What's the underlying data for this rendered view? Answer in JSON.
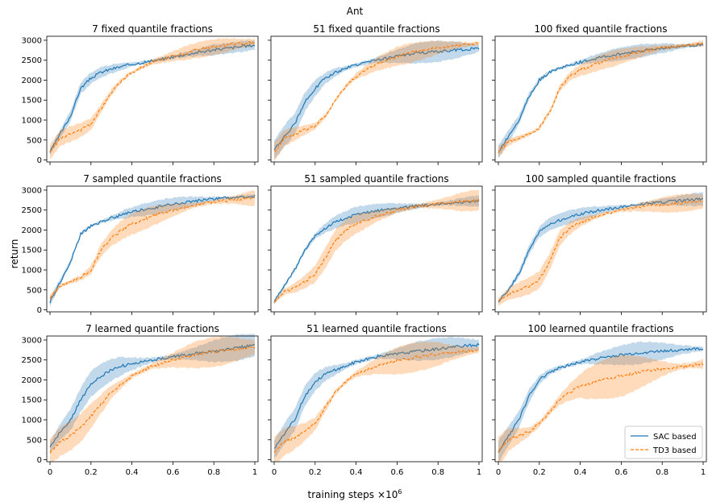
{
  "figure": {
    "title": "Ant",
    "xlabel": "training steps",
    "xlabel_exponent": "×10",
    "xlabel_exponent_sup": "6",
    "ylabel": "return"
  },
  "legend": {
    "placement": "lower-right",
    "entries": [
      "SAC based",
      "TD3 based"
    ]
  },
  "colors": {
    "sac": "#1f77b4",
    "td3": "#ff7f0e"
  },
  "chart_data": [
    {
      "type": "line",
      "title": "7 fixed quantile fractions",
      "x_ticks": [
        "0",
        "0.2",
        "0.4",
        "0.6",
        "0.8",
        "1"
      ],
      "y_ticks": [
        "0",
        "500",
        "1000",
        "1500",
        "2000",
        "2500",
        "3000"
      ],
      "xlim": [
        0,
        1
      ],
      "ylim": [
        -50,
        3100
      ],
      "x": [
        0,
        0.05,
        0.1,
        0.15,
        0.2,
        0.25,
        0.3,
        0.35,
        0.4,
        0.5,
        0.6,
        0.7,
        0.8,
        0.9,
        1.0
      ],
      "series": [
        {
          "name": "SAC based",
          "values": [
            200,
            650,
            1100,
            1800,
            2050,
            2200,
            2280,
            2340,
            2400,
            2480,
            2580,
            2680,
            2760,
            2820,
            2880
          ],
          "band": 120
        },
        {
          "name": "TD3 based",
          "values": [
            200,
            550,
            650,
            750,
            900,
            1300,
            1700,
            2000,
            2200,
            2450,
            2600,
            2730,
            2830,
            2900,
            2950
          ],
          "band": 180
        }
      ]
    },
    {
      "type": "line",
      "title": "51 fixed quantile fractions",
      "x_ticks": [
        "0",
        "0.2",
        "0.4",
        "0.6",
        "0.8",
        "1"
      ],
      "y_ticks": [
        "0",
        "500",
        "1000",
        "1500",
        "2000",
        "2500",
        "3000"
      ],
      "xlim": [
        0,
        1
      ],
      "ylim": [
        -50,
        3100
      ],
      "x": [
        0,
        0.05,
        0.1,
        0.15,
        0.2,
        0.25,
        0.3,
        0.35,
        0.4,
        0.5,
        0.6,
        0.7,
        0.8,
        0.9,
        1.0
      ],
      "series": [
        {
          "name": "SAC based",
          "values": [
            250,
            600,
            900,
            1450,
            1800,
            2050,
            2200,
            2300,
            2380,
            2500,
            2600,
            2680,
            2720,
            2760,
            2800
          ],
          "band": 250
        },
        {
          "name": "TD3 based",
          "values": [
            200,
            550,
            650,
            750,
            850,
            1100,
            1500,
            1850,
            2100,
            2400,
            2600,
            2720,
            2820,
            2880,
            2920
          ],
          "band": 220
        }
      ]
    },
    {
      "type": "line",
      "title": "100 fixed quantile fractions",
      "x_ticks": [
        "0",
        "0.2",
        "0.4",
        "0.6",
        "0.8",
        "1"
      ],
      "y_ticks": [
        "0",
        "500",
        "1000",
        "1500",
        "2000",
        "2500",
        "3000"
      ],
      "xlim": [
        0,
        1
      ],
      "ylim": [
        -50,
        3100
      ],
      "x": [
        0,
        0.05,
        0.1,
        0.15,
        0.2,
        0.25,
        0.3,
        0.35,
        0.4,
        0.5,
        0.6,
        0.7,
        0.8,
        0.9,
        1.0
      ],
      "series": [
        {
          "name": "SAC based",
          "values": [
            200,
            600,
            1000,
            1600,
            2000,
            2200,
            2300,
            2380,
            2450,
            2570,
            2660,
            2740,
            2800,
            2850,
            2900
          ],
          "band": 150
        },
        {
          "name": "TD3 based",
          "values": [
            200,
            450,
            550,
            650,
            800,
            1200,
            1800,
            2100,
            2250,
            2450,
            2600,
            2720,
            2810,
            2860,
            2920
          ],
          "band": 180
        }
      ]
    },
    {
      "type": "line",
      "title": "7 sampled quantile fractions",
      "x_ticks": [
        "0",
        "0.2",
        "0.4",
        "0.6",
        "0.8",
        "1"
      ],
      "y_ticks": [
        "0",
        "500",
        "1000",
        "1500",
        "2000",
        "2500",
        "3000"
      ],
      "xlim": [
        0,
        1
      ],
      "ylim": [
        -50,
        3100
      ],
      "x": [
        0,
        0.05,
        0.1,
        0.15,
        0.2,
        0.25,
        0.3,
        0.35,
        0.4,
        0.5,
        0.6,
        0.7,
        0.8,
        0.9,
        1.0
      ],
      "series": [
        {
          "name": "SAC based",
          "values": [
            200,
            700,
            1200,
            1900,
            2100,
            2200,
            2300,
            2380,
            2450,
            2550,
            2650,
            2720,
            2780,
            2820,
            2850
          ],
          "band": 150
        },
        {
          "name": "TD3 based",
          "values": [
            300,
            600,
            700,
            800,
            1000,
            1500,
            1800,
            2000,
            2150,
            2350,
            2500,
            2620,
            2700,
            2760,
            2800
          ],
          "band": 250
        }
      ]
    },
    {
      "type": "line",
      "title": "51 sampled quantile fractions",
      "x_ticks": [
        "0",
        "0.2",
        "0.4",
        "0.6",
        "0.8",
        "1"
      ],
      "y_ticks": [
        "0",
        "500",
        "1000",
        "1500",
        "2000",
        "2500",
        "3000"
      ],
      "xlim": [
        0,
        1
      ],
      "ylim": [
        -50,
        3100
      ],
      "x": [
        0,
        0.05,
        0.1,
        0.15,
        0.2,
        0.25,
        0.3,
        0.35,
        0.4,
        0.5,
        0.6,
        0.7,
        0.8,
        0.9,
        1.0
      ],
      "series": [
        {
          "name": "SAC based",
          "values": [
            200,
            600,
            1000,
            1500,
            1850,
            2050,
            2200,
            2300,
            2380,
            2480,
            2550,
            2600,
            2650,
            2700,
            2730
          ],
          "band": 180
        },
        {
          "name": "TD3 based",
          "values": [
            200,
            450,
            550,
            700,
            900,
            1300,
            1750,
            2000,
            2150,
            2350,
            2500,
            2600,
            2650,
            2700,
            2750
          ],
          "band": 250
        }
      ]
    },
    {
      "type": "line",
      "title": "100 sampled quantile fractions",
      "x_ticks": [
        "0",
        "0.2",
        "0.4",
        "0.6",
        "0.8",
        "1"
      ],
      "y_ticks": [
        "0",
        "500",
        "1000",
        "1500",
        "2000",
        "2500",
        "3000"
      ],
      "xlim": [
        0,
        1
      ],
      "ylim": [
        -50,
        3100
      ],
      "x": [
        0,
        0.05,
        0.1,
        0.15,
        0.2,
        0.25,
        0.3,
        0.35,
        0.4,
        0.5,
        0.6,
        0.7,
        0.8,
        0.9,
        1.0
      ],
      "series": [
        {
          "name": "SAC based",
          "values": [
            200,
            500,
            900,
            1500,
            1950,
            2150,
            2250,
            2330,
            2400,
            2500,
            2580,
            2650,
            2700,
            2740,
            2780
          ],
          "band": 150
        },
        {
          "name": "TD3 based",
          "values": [
            200,
            400,
            500,
            600,
            750,
            1200,
            1800,
            2050,
            2200,
            2380,
            2500,
            2580,
            2630,
            2680,
            2720
          ],
          "band": 200
        }
      ]
    },
    {
      "type": "line",
      "title": "7 learned quantile fractions",
      "x_ticks": [
        "0",
        "0.2",
        "0.4",
        "0.6",
        "0.8",
        "1"
      ],
      "y_ticks": [
        "0",
        "500",
        "1000",
        "1500",
        "2000",
        "2500",
        "3000"
      ],
      "xlim": [
        0,
        1
      ],
      "ylim": [
        -50,
        3100
      ],
      "x": [
        0,
        0.05,
        0.1,
        0.15,
        0.2,
        0.25,
        0.3,
        0.35,
        0.4,
        0.5,
        0.6,
        0.7,
        0.8,
        0.9,
        1.0
      ],
      "series": [
        {
          "name": "SAC based",
          "values": [
            300,
            700,
            1000,
            1500,
            1900,
            2100,
            2250,
            2350,
            2400,
            2500,
            2580,
            2650,
            2720,
            2800,
            2870
          ],
          "band": 300
        },
        {
          "name": "TD3 based",
          "values": [
            200,
            450,
            600,
            800,
            1100,
            1400,
            1700,
            1900,
            2100,
            2350,
            2500,
            2620,
            2700,
            2760,
            2820
          ],
          "band": 350
        }
      ]
    },
    {
      "type": "line",
      "title": "51 learned quantile fractions",
      "x_ticks": [
        "0",
        "0.2",
        "0.4",
        "0.6",
        "0.8",
        "1"
      ],
      "y_ticks": [
        "0",
        "500",
        "1000",
        "1500",
        "2000",
        "2500",
        "3000"
      ],
      "xlim": [
        0,
        1
      ],
      "ylim": [
        -50,
        3100
      ],
      "x": [
        0,
        0.05,
        0.1,
        0.15,
        0.2,
        0.25,
        0.3,
        0.35,
        0.4,
        0.5,
        0.6,
        0.7,
        0.8,
        0.9,
        1.0
      ],
      "series": [
        {
          "name": "SAC based",
          "values": [
            250,
            650,
            1000,
            1600,
            1950,
            2150,
            2250,
            2350,
            2450,
            2580,
            2650,
            2720,
            2780,
            2840,
            2880
          ],
          "band": 250
        },
        {
          "name": "TD3 based",
          "values": [
            200,
            450,
            550,
            700,
            900,
            1300,
            1700,
            1950,
            2150,
            2350,
            2480,
            2580,
            2650,
            2700,
            2750
          ],
          "band": 350
        }
      ]
    },
    {
      "type": "line",
      "title": "100 learned quantile fractions",
      "x_ticks": [
        "0",
        "0.2",
        "0.4",
        "0.6",
        "0.8",
        "1"
      ],
      "y_ticks": [
        "0",
        "500",
        "1000",
        "1500",
        "2000",
        "2500",
        "3000"
      ],
      "xlim": [
        0,
        1
      ],
      "ylim": [
        -50,
        3100
      ],
      "x": [
        0,
        0.05,
        0.1,
        0.15,
        0.2,
        0.25,
        0.3,
        0.35,
        0.4,
        0.5,
        0.6,
        0.7,
        0.8,
        0.9,
        1.0
      ],
      "series": [
        {
          "name": "SAC based",
          "values": [
            200,
            600,
            1000,
            1600,
            2000,
            2200,
            2300,
            2380,
            2450,
            2550,
            2620,
            2680,
            2720,
            2760,
            2780
          ],
          "band": 250
        },
        {
          "name": "TD3 based",
          "values": [
            200,
            500,
            600,
            700,
            900,
            1200,
            1500,
            1700,
            1850,
            2000,
            2100,
            2200,
            2280,
            2340,
            2400
          ],
          "band": 500
        }
      ]
    }
  ]
}
